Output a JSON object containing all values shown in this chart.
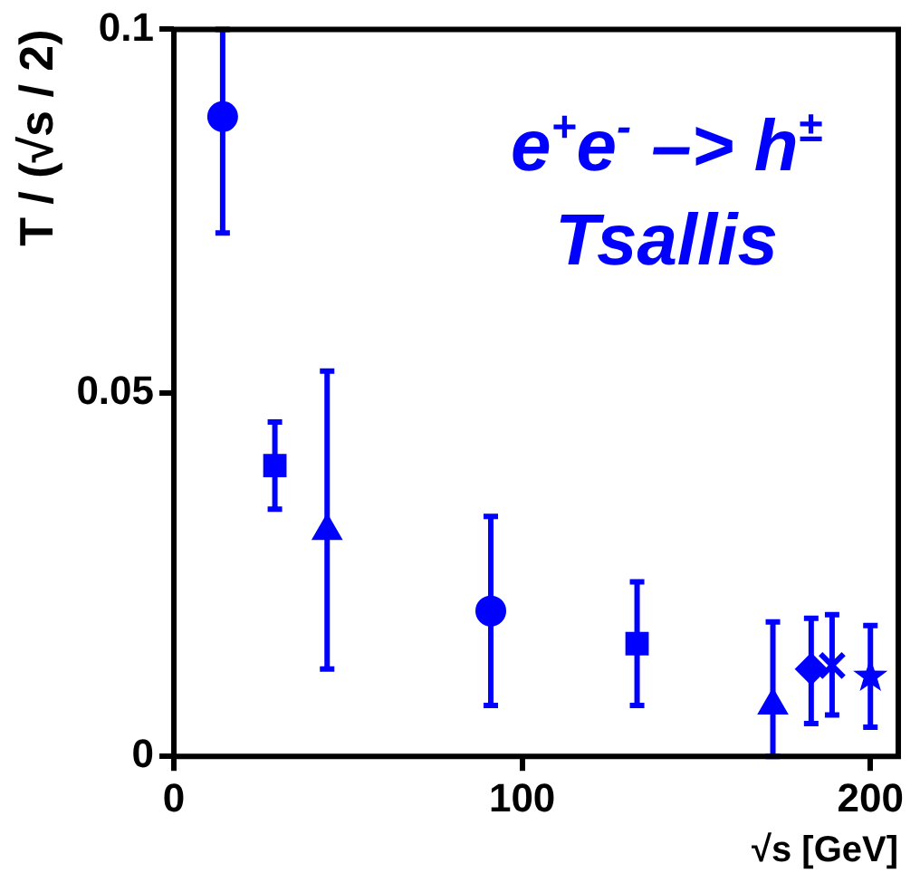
{
  "chart_data": {
    "type": "scatter",
    "xlabel": "√s [GeV]",
    "ylabel": "T / (√s / 2)",
    "annotations": [
      "e$^{+}$e$^{-}$ –> h$^{±}$",
      "Tsallis"
    ],
    "xlim": [
      0,
      208
    ],
    "xticks": [
      0,
      100,
      200
    ],
    "ylim": [
      0,
      0.1
    ],
    "yticks": [
      0,
      0.05,
      0.1
    ],
    "grid": false,
    "legend": false,
    "series": [
      {
        "color": "#0000ff",
        "marker": "circle",
        "x": [
          14
        ],
        "values": [
          0.088
        ],
        "errors": [
          [
            0.072,
            0.1
          ]
        ]
      },
      {
        "color": "#0000ff",
        "marker": "square",
        "x": [
          29
        ],
        "values": [
          0.04
        ],
        "errors": [
          [
            0.034,
            0.046
          ]
        ]
      },
      {
        "color": "#0000ff",
        "marker": "triangle",
        "x": [
          44
        ],
        "values": [
          0.031
        ],
        "errors": [
          [
            0.012,
            0.053
          ]
        ]
      },
      {
        "color": "#0000ff",
        "marker": "circle",
        "x": [
          91
        ],
        "values": [
          0.02
        ],
        "errors": [
          [
            0.007,
            0.033
          ]
        ]
      },
      {
        "color": "#0000ff",
        "marker": "square",
        "x": [
          133
        ],
        "values": [
          0.0155
        ],
        "errors": [
          [
            0.007,
            0.024
          ]
        ]
      },
      {
        "color": "#0000ff",
        "marker": "triangle",
        "x": [
          172
        ],
        "values": [
          0.007
        ],
        "errors": [
          [
            0,
            0.0185
          ]
        ]
      },
      {
        "color": "#0000ff",
        "marker": "diamond",
        "x": [
          183
        ],
        "values": [
          0.012
        ],
        "errors": [
          [
            0.0045,
            0.019
          ]
        ]
      },
      {
        "color": "#0000ff",
        "marker": "cross",
        "x": [
          189
        ],
        "values": [
          0.0125
        ],
        "errors": [
          [
            0.0057,
            0.0195
          ]
        ]
      },
      {
        "color": "#0000ff",
        "marker": "star",
        "x": [
          200
        ],
        "values": [
          0.011
        ],
        "errors": [
          [
            0.004,
            0.018
          ]
        ]
      }
    ]
  }
}
